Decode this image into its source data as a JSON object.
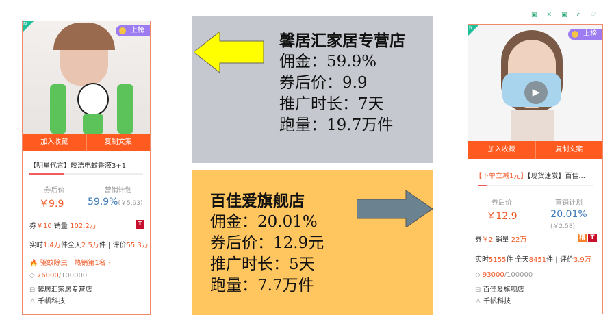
{
  "card1": {
    "rank": "上榜",
    "new_badge": "N",
    "actions": [
      "加入收藏",
      "复制文案"
    ],
    "title": "【明星代言】皎洁电蚊香液3+1",
    "price_label": "券后价",
    "price": "￥9.9",
    "plan_label": "营销计划",
    "commission": "59.9%",
    "commission_amount": "(￥5.93)",
    "coupon_label": "券",
    "coupon": "￥10",
    "sales_label": "销量",
    "sales": "102.2万",
    "tmall_tag": "T",
    "realtime_label": "实时",
    "realtime": "1.4万",
    "unit": "件",
    "day_label": "全天",
    "day": "2.5万",
    "review_label": "评价",
    "review": "55.3万",
    "category": "驱蚊除虫",
    "hot_rank": "热销第1名",
    "stock": "76000",
    "stock_total": "/100000",
    "shop": "馨居汇家居专营店",
    "team": "千帆科技"
  },
  "card2": {
    "rank": "上榜",
    "new_badge": "N",
    "actions": [
      "加入收藏",
      "复制文案"
    ],
    "title_promo": "【下单立减1元】",
    "title": "【现货速发】百佳...",
    "price_label": "券后价",
    "price": "￥12.9",
    "plan_label": "营销计划",
    "commission": "20.01%",
    "commission_amount": "(￥2.58)",
    "coupon_label": "券",
    "coupon": "￥2",
    "sales_label": "销量",
    "sales": "22万",
    "jing_tag": "精",
    "tmall_tag": "T",
    "realtime_label": "实时",
    "realtime": "5155",
    "unit": "件",
    "day_label": "全天",
    "day": "8451",
    "review_label": "评价",
    "review": "3.9万",
    "stock": "93000",
    "stock_total": "/100000",
    "shop": "百佳爱旗舰店",
    "team": "千帆科技"
  },
  "panel1": {
    "shop": "馨居汇家居专营店",
    "lines": [
      "佣金：59.9%",
      "券后价：9.9",
      "推广时长：7天",
      "跑量：19.7万件"
    ],
    "color": "#c5c8ce"
  },
  "panel2": {
    "shop": "百佳爱旗舰店",
    "lines": [
      "佣金：20.01%",
      "券后价：12.9元",
      "推广时长：5天",
      "跑量：7.7万件"
    ],
    "color": "#ffc660"
  },
  "colors": {
    "accent": "#ff5a1f",
    "price": "#f05a28",
    "commission": "#3a7ab8"
  }
}
